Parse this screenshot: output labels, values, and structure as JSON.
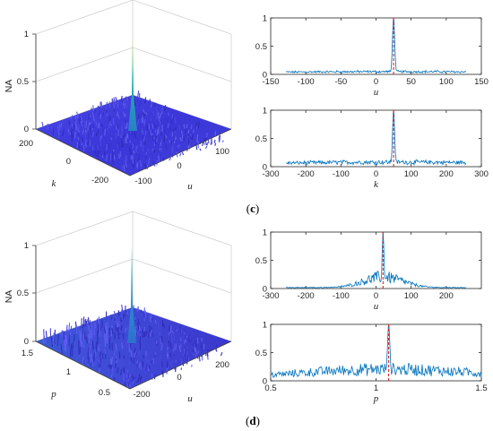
{
  "panels": [
    {
      "label_open": "(",
      "label_letter": "c",
      "label_close": ")",
      "surface": {
        "z_label": "NA",
        "z_ticks": [
          "0",
          "0.5",
          "1"
        ],
        "left_axis": {
          "label": "k",
          "ticks": [
            "200",
            "0",
            "-200"
          ]
        },
        "right_axis": {
          "label": "u",
          "ticks": [
            "-100",
            "0",
            "100"
          ]
        },
        "peak": {
          "value": 1.0
        }
      },
      "chart_data": [
        {
          "type": "line",
          "xlabel": "u",
          "xlim": [
            -150,
            150
          ],
          "ylim": [
            0,
            1
          ],
          "x_ticks": [
            "-150",
            "-100",
            "-50",
            "0",
            "50",
            "100",
            "150"
          ],
          "y_ticks": [
            "0",
            "0.5",
            "1"
          ],
          "x_range": [
            -128,
            128
          ],
          "peak_x": 25,
          "peak_y": 1.0,
          "peak_width": 1.6,
          "noise_level": 0.05,
          "envelope_width": 200,
          "marker_x": 25,
          "marker_color": "#d62728",
          "line_color": "#0072bd"
        },
        {
          "type": "line",
          "xlabel": "k",
          "xlim": [
            -300,
            300
          ],
          "ylim": [
            0,
            1
          ],
          "x_ticks": [
            "-300",
            "-200",
            "-100",
            "0",
            "100",
            "200",
            "300"
          ],
          "y_ticks": [
            "0",
            "0.5",
            "1"
          ],
          "x_range": [
            -256,
            256
          ],
          "peak_x": 50,
          "peak_y": 1.0,
          "peak_width": 3.0,
          "noise_level": 0.1,
          "envelope_width": 400,
          "marker_x": 50,
          "marker_color": "#d62728",
          "line_color": "#0072bd"
        }
      ]
    },
    {
      "label_open": "(",
      "label_letter": "d",
      "label_close": ")",
      "surface": {
        "z_label": "NA",
        "z_ticks": [
          "0",
          "0.5",
          "1"
        ],
        "left_axis": {
          "label": "p",
          "ticks": [
            "1.5",
            "1",
            "0.5"
          ]
        },
        "right_axis": {
          "label": "u",
          "ticks": [
            "-200",
            "0",
            "200"
          ]
        },
        "peak": {
          "value": 1.0
        }
      },
      "chart_data": [
        {
          "type": "line",
          "xlabel": "u",
          "xlim": [
            -300,
            300
          ],
          "ylim": [
            0,
            1
          ],
          "x_ticks": [
            "-300",
            "-200",
            "-100",
            "0",
            "100",
            "200"
          ],
          "y_ticks": [
            "0",
            "0.5",
            "1"
          ],
          "x_range": [
            -256,
            256
          ],
          "peak_x": 20,
          "peak_y": 1.0,
          "peak_width": 2.5,
          "noise_level": 0.3,
          "envelope_width": 55,
          "marker_x": 20,
          "marker_color": "#d62728",
          "line_color": "#0072bd"
        },
        {
          "type": "line",
          "xlabel": "p",
          "xlim": [
            0.5,
            1.5
          ],
          "ylim": [
            0,
            1
          ],
          "x_ticks": [
            "0.5",
            "1",
            "1.5"
          ],
          "y_ticks": [
            "0",
            "0.5",
            "1"
          ],
          "x_range": [
            0.5,
            1.5
          ],
          "peak_x": 1.06,
          "peak_y": 1.0,
          "peak_width": 0.006,
          "noise_level": 0.3,
          "envelope_width": 0.45,
          "marker_x": 1.06,
          "marker_color": "#d62728",
          "line_color": "#0072bd"
        }
      ]
    }
  ]
}
